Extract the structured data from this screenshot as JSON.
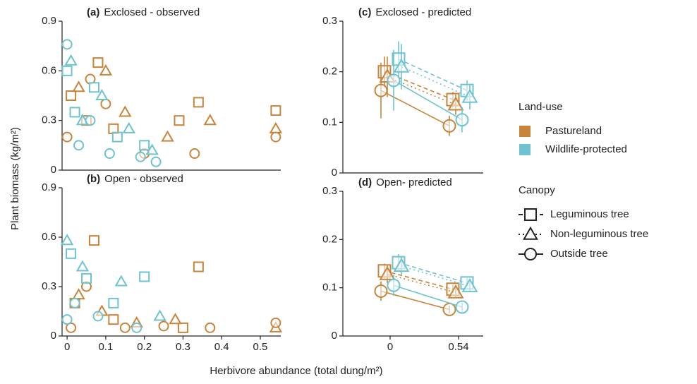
{
  "chart_data": [
    {
      "type": "scatter",
      "panel": "(a)",
      "title": "Exclosed - observed",
      "xlim": [
        -0.013,
        0.553
      ],
      "ylim": [
        0,
        0.9
      ],
      "yticks": [
        0,
        0.3,
        0.6,
        0.9
      ],
      "series": [
        {
          "land_use": "Pastureland",
          "canopy": "Leguminous tree",
          "x": [
            0.01,
            0.05,
            0.08,
            0.12,
            0.29,
            0.34,
            0.54
          ],
          "values": [
            0.45,
            0.3,
            0.65,
            0.25,
            0.3,
            0.41,
            0.36
          ]
        },
        {
          "land_use": "Pastureland",
          "canopy": "Non-leguminous tree",
          "x": [
            0.03,
            0.1,
            0.15,
            0.26,
            0.37,
            0.54
          ],
          "values": [
            0.5,
            0.6,
            0.35,
            0.2,
            0.3,
            0.25
          ]
        },
        {
          "land_use": "Pastureland",
          "canopy": "Outside tree",
          "x": [
            0.0,
            0.06,
            0.1,
            0.2,
            0.33,
            0.54
          ],
          "values": [
            0.2,
            0.55,
            0.4,
            0.1,
            0.1,
            0.2
          ]
        },
        {
          "land_use": "Wildlife-protected",
          "canopy": "Leguminous tree",
          "x": [
            0.0,
            0.02,
            0.07,
            0.13,
            0.2
          ],
          "values": [
            0.6,
            0.35,
            0.5,
            0.2,
            0.15
          ]
        },
        {
          "land_use": "Wildlife-protected",
          "canopy": "Non-leguminous tree",
          "x": [
            0.01,
            0.04,
            0.09,
            0.16,
            0.22
          ],
          "values": [
            0.66,
            0.3,
            0.45,
            0.25,
            0.12
          ]
        },
        {
          "land_use": "Wildlife-protected",
          "canopy": "Outside tree",
          "x": [
            0.0,
            0.03,
            0.06,
            0.11,
            0.19,
            0.23
          ],
          "values": [
            0.76,
            0.15,
            0.3,
            0.1,
            0.08,
            0.05
          ]
        }
      ]
    },
    {
      "type": "scatter",
      "panel": "(b)",
      "title": "Open - observed",
      "xlim": [
        -0.013,
        0.553
      ],
      "ylim": [
        0,
        0.9
      ],
      "yticks": [
        0,
        0.3,
        0.6,
        0.9
      ],
      "xticks": [
        0,
        0.1,
        0.2,
        0.3,
        0.4,
        0.5
      ],
      "series": [
        {
          "land_use": "Pastureland",
          "canopy": "Leguminous tree",
          "x": [
            0.02,
            0.07,
            0.12,
            0.3,
            0.34
          ],
          "values": [
            0.2,
            0.58,
            0.1,
            0.05,
            0.42
          ]
        },
        {
          "land_use": "Pastureland",
          "canopy": "Non-leguminous tree",
          "x": [
            0.03,
            0.09,
            0.18,
            0.28,
            0.54
          ],
          "values": [
            0.25,
            0.15,
            0.08,
            0.1,
            0.05
          ]
        },
        {
          "land_use": "Pastureland",
          "canopy": "Outside tree",
          "x": [
            0.01,
            0.05,
            0.15,
            0.25,
            0.37,
            0.54
          ],
          "values": [
            0.05,
            0.3,
            0.05,
            0.06,
            0.05,
            0.08
          ]
        },
        {
          "land_use": "Wildlife-protected",
          "canopy": "Leguminous tree",
          "x": [
            0.01,
            0.05,
            0.12,
            0.2
          ],
          "values": [
            0.5,
            0.35,
            0.2,
            0.36
          ]
        },
        {
          "land_use": "Wildlife-protected",
          "canopy": "Non-leguminous tree",
          "x": [
            0.0,
            0.04,
            0.14,
            0.24
          ],
          "values": [
            0.58,
            0.42,
            0.33,
            0.12
          ]
        },
        {
          "land_use": "Wildlife-protected",
          "canopy": "Outside tree",
          "x": [
            0.0,
            0.02,
            0.08,
            0.18
          ],
          "values": [
            0.1,
            0.2,
            0.12,
            0.05
          ]
        }
      ]
    },
    {
      "type": "errorline",
      "panel": "(c)",
      "title": "Exclosed - predicted",
      "xlim": [
        -0.373,
        0.735
      ],
      "ylim": [
        0,
        0.3
      ],
      "yticks": [
        0,
        0.1,
        0.2,
        0.3
      ],
      "series": [
        {
          "land_use": "Pastureland",
          "canopy": "Leguminous tree",
          "x": [
            0,
            0.54
          ],
          "values": [
            0.2,
            0.145
          ],
          "errors": [
            0.03,
            0.015
          ]
        },
        {
          "land_use": "Pastureland",
          "canopy": "Non-leguminous tree",
          "x": [
            0,
            0.54
          ],
          "values": [
            0.19,
            0.135
          ],
          "errors": [
            0.04,
            0.02
          ]
        },
        {
          "land_use": "Pastureland",
          "canopy": "Outside tree",
          "x": [
            0,
            0.54
          ],
          "values": [
            0.163,
            0.093
          ],
          "errors": [
            0.055,
            0.02
          ]
        },
        {
          "land_use": "Wildlife-protected",
          "canopy": "Leguminous tree",
          "x": [
            0,
            0.54
          ],
          "values": [
            0.225,
            0.163
          ],
          "errors": [
            0.035,
            0.02
          ]
        },
        {
          "land_use": "Wildlife-protected",
          "canopy": "Non-leguminous tree",
          "x": [
            0,
            0.54
          ],
          "values": [
            0.21,
            0.15
          ],
          "errors": [
            0.045,
            0.025
          ]
        },
        {
          "land_use": "Wildlife-protected",
          "canopy": "Outside tree",
          "x": [
            0,
            0.54
          ],
          "values": [
            0.183,
            0.105
          ],
          "errors": [
            0.06,
            0.025
          ]
        }
      ]
    },
    {
      "type": "errorline",
      "panel": "(d)",
      "title": "Open- predicted",
      "xlim": [
        -0.373,
        0.735
      ],
      "ylim": [
        0,
        0.3
      ],
      "yticks": [
        0,
        0.1,
        0.2,
        0.3
      ],
      "xticks": [
        0,
        0.54
      ],
      "series": [
        {
          "land_use": "Pastureland",
          "canopy": "Leguminous tree",
          "x": [
            0,
            0.54
          ],
          "values": [
            0.135,
            0.097
          ],
          "errors": [
            0.015,
            0.01
          ]
        },
        {
          "land_use": "Pastureland",
          "canopy": "Non-leguminous tree",
          "x": [
            0,
            0.54
          ],
          "values": [
            0.128,
            0.09
          ],
          "errors": [
            0.018,
            0.01
          ]
        },
        {
          "land_use": "Pastureland",
          "canopy": "Outside tree",
          "x": [
            0,
            0.54
          ],
          "values": [
            0.093,
            0.055
          ],
          "errors": [
            0.02,
            0.008
          ]
        },
        {
          "land_use": "Wildlife-protected",
          "canopy": "Leguminous tree",
          "x": [
            0,
            0.54
          ],
          "values": [
            0.152,
            0.11
          ],
          "errors": [
            0.018,
            0.01
          ]
        },
        {
          "land_use": "Wildlife-protected",
          "canopy": "Non-leguminous tree",
          "x": [
            0,
            0.54
          ],
          "values": [
            0.145,
            0.103
          ],
          "errors": [
            0.02,
            0.012
          ]
        },
        {
          "land_use": "Wildlife-protected",
          "canopy": "Outside tree",
          "x": [
            0,
            0.54
          ],
          "values": [
            0.105,
            0.06
          ],
          "errors": [
            0.022,
            0.01
          ]
        }
      ]
    }
  ],
  "ylabel": "Plant biomass (kg/m²)",
  "xlabel": "Herbivore abundance (total dung/m²)",
  "legend": {
    "land_use_title": "Land-use",
    "land_use": [
      {
        "name": "Pastureland",
        "color": "#c8843a"
      },
      {
        "name": "Wildlife-protected",
        "color": "#6ec3d0"
      }
    ],
    "canopy_title": "Canopy",
    "canopy": [
      {
        "name": "Leguminous tree",
        "marker": "square",
        "line": "dashed"
      },
      {
        "name": "Non-leguminous tree",
        "marker": "triangle",
        "line": "dotted"
      },
      {
        "name": "Outside tree",
        "marker": "circle",
        "line": "solid"
      }
    ]
  }
}
